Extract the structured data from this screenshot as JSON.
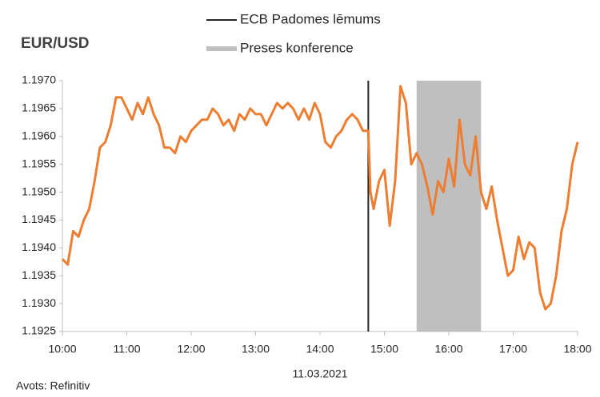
{
  "chart_data": {
    "type": "line",
    "title": "EUR/USD",
    "xlabel": "11.03.2021",
    "source": "Avots: Refinitiv",
    "x": [
      10,
      10.083,
      10.167,
      10.25,
      10.333,
      10.417,
      10.5,
      10.583,
      10.667,
      10.75,
      10.833,
      10.917,
      11,
      11.083,
      11.167,
      11.25,
      11.333,
      11.417,
      11.5,
      11.583,
      11.667,
      11.75,
      11.833,
      11.917,
      12,
      12.083,
      12.167,
      12.25,
      12.333,
      12.417,
      12.5,
      12.583,
      12.667,
      12.75,
      12.833,
      12.917,
      13,
      13.083,
      13.167,
      13.25,
      13.333,
      13.417,
      13.5,
      13.583,
      13.667,
      13.75,
      13.833,
      13.917,
      14,
      14.083,
      14.167,
      14.25,
      14.333,
      14.417,
      14.5,
      14.583,
      14.667,
      14.75,
      14.783,
      14.833,
      14.917,
      15,
      15.083,
      15.167,
      15.25,
      15.333,
      15.417,
      15.5,
      15.583,
      15.667,
      15.75,
      15.833,
      15.917,
      16,
      16.083,
      16.167,
      16.25,
      16.333,
      16.417,
      16.5,
      16.583,
      16.667,
      16.75,
      16.833,
      16.917,
      17,
      17.083,
      17.167,
      17.25,
      17.333,
      17.417,
      17.5,
      17.583,
      17.667,
      17.75,
      17.833,
      17.917,
      18
    ],
    "values": [
      1.1938,
      1.1937,
      1.1943,
      1.1942,
      1.1945,
      1.1947,
      1.1952,
      1.1958,
      1.1959,
      1.1962,
      1.1967,
      1.1967,
      1.1965,
      1.1963,
      1.1966,
      1.1964,
      1.1967,
      1.1964,
      1.1962,
      1.1958,
      1.1958,
      1.1957,
      1.196,
      1.1959,
      1.1961,
      1.1962,
      1.1963,
      1.1963,
      1.1965,
      1.1964,
      1.1962,
      1.1963,
      1.1961,
      1.1964,
      1.1963,
      1.1965,
      1.1964,
      1.1964,
      1.1962,
      1.1964,
      1.1966,
      1.1965,
      1.1966,
      1.1965,
      1.1963,
      1.1965,
      1.1963,
      1.1966,
      1.1964,
      1.1959,
      1.1958,
      1.196,
      1.1961,
      1.1963,
      1.1964,
      1.1963,
      1.1961,
      1.1961,
      1.195,
      1.1947,
      1.1952,
      1.1954,
      1.1944,
      1.1952,
      1.1969,
      1.1966,
      1.1955,
      1.1957,
      1.1955,
      1.1951,
      1.1946,
      1.1952,
      1.195,
      1.1956,
      1.1951,
      1.1963,
      1.1955,
      1.1953,
      1.196,
      1.195,
      1.1947,
      1.1951,
      1.1945,
      1.194,
      1.1935,
      1.1936,
      1.1942,
      1.1938,
      1.1941,
      1.194,
      1.1932,
      1.1929,
      1.193,
      1.1935,
      1.1943,
      1.1947,
      1.1955,
      1.1959
    ],
    "color": "#ed7d31",
    "event": {
      "name": "ECB Padomes lēmums",
      "x": 14.75,
      "color": "#262626"
    },
    "shade": {
      "name": "Preses konference",
      "x": [
        15.5,
        16.5
      ],
      "color": "#bfbfbf"
    },
    "xlim": [
      10,
      18
    ],
    "xticks": [
      {
        "value": 10,
        "label": "10:00"
      },
      {
        "value": 11,
        "label": "11:00"
      },
      {
        "value": 12,
        "label": "12:00"
      },
      {
        "value": 13,
        "label": "13:00"
      },
      {
        "value": 14,
        "label": "14:00"
      },
      {
        "value": 15,
        "label": "15:00"
      },
      {
        "value": 16,
        "label": "16:00"
      },
      {
        "value": 17,
        "label": "17:00"
      },
      {
        "value": 18,
        "label": "18:00"
      }
    ],
    "ylim": [
      1.1925,
      1.197
    ],
    "yticks": [
      {
        "value": 1.1925,
        "label": "1.1925"
      },
      {
        "value": 1.193,
        "label": "1.1930"
      },
      {
        "value": 1.1935,
        "label": "1.1935"
      },
      {
        "value": 1.194,
        "label": "1.1940"
      },
      {
        "value": 1.1945,
        "label": "1.1945"
      },
      {
        "value": 1.195,
        "label": "1.1950"
      },
      {
        "value": 1.1955,
        "label": "1.1955"
      },
      {
        "value": 1.196,
        "label": "1.1960"
      },
      {
        "value": 1.1965,
        "label": "1.1965"
      },
      {
        "value": 1.197,
        "label": "1.1970"
      }
    ]
  }
}
